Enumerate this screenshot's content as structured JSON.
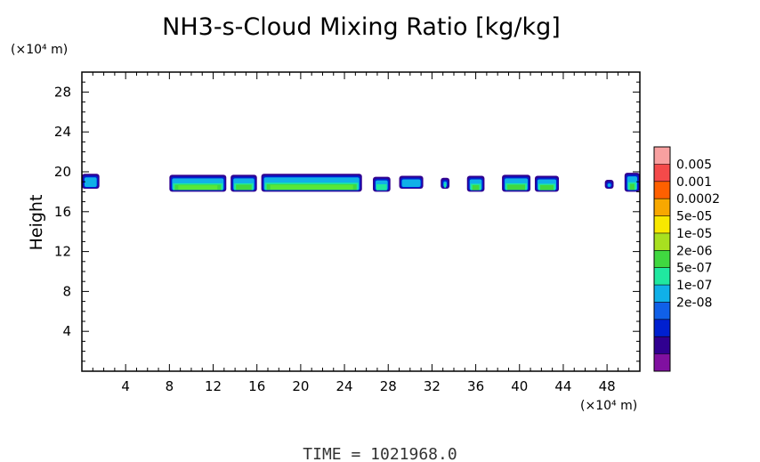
{
  "chart_data": {
    "type": "heatmap",
    "title": "NH3-s-Cloud Mixing Ratio [kg/kg]",
    "ylabel": "Height",
    "x_unit": "(×10⁴ m)",
    "y_unit": "(×10⁴ m)",
    "footer": "TIME = 1021968.0",
    "xlim": [
      0,
      51
    ],
    "ylim": [
      0,
      30
    ],
    "x_ticks": [
      {
        "v": 4,
        "label": "4"
      },
      {
        "v": 8,
        "label": "8"
      },
      {
        "v": 12,
        "label": "12"
      },
      {
        "v": 16,
        "label": "16"
      },
      {
        "v": 20,
        "label": "20"
      },
      {
        "v": 24,
        "label": "24"
      },
      {
        "v": 28,
        "label": "28"
      },
      {
        "v": 32,
        "label": "32"
      },
      {
        "v": 36,
        "label": "36"
      },
      {
        "v": 40,
        "label": "40"
      },
      {
        "v": 44,
        "label": "44"
      },
      {
        "v": 48,
        "label": "48"
      }
    ],
    "y_ticks": [
      {
        "v": 4,
        "label": "4"
      },
      {
        "v": 8,
        "label": "8"
      },
      {
        "v": 12,
        "label": "12"
      },
      {
        "v": 16,
        "label": "16"
      },
      {
        "v": 20,
        "label": "20"
      },
      {
        "v": 24,
        "label": "24"
      },
      {
        "v": 28,
        "label": "28"
      }
    ],
    "colorbar": {
      "levels": [
        {
          "label": "0.005",
          "color": "#f8a0a0"
        },
        {
          "label": "0.001",
          "color": "#f44a4a"
        },
        {
          "label": "0.0002",
          "color": "#ff6000"
        },
        {
          "label": "5e-05",
          "color": "#f8a800"
        },
        {
          "label": "1e-05",
          "color": "#f8e800"
        },
        {
          "label": "2e-06",
          "color": "#a8e020"
        },
        {
          "label": "5e-07",
          "color": "#40d840"
        },
        {
          "label": "1e-07",
          "color": "#20e8a0"
        },
        {
          "label": "2e-08",
          "color": "#10b0e8"
        },
        {
          "label": "",
          "color": "#1060e8"
        },
        {
          "label": "",
          "color": "#0020d0"
        },
        {
          "label": "",
          "color": "#300090"
        },
        {
          "label": "",
          "color": "#8010a0"
        }
      ]
    },
    "cloud_cells": [
      {
        "x0": 0.0,
        "x1": 1.6,
        "y0": 18.3,
        "y1": 19.8,
        "core": 0
      },
      {
        "x0": 8.0,
        "x1": 13.2,
        "y0": 18.0,
        "y1": 19.7,
        "core": 3
      },
      {
        "x0": 13.6,
        "x1": 16.0,
        "y0": 18.0,
        "y1": 19.7,
        "core": 2
      },
      {
        "x0": 16.4,
        "x1": 25.6,
        "y0": 18.0,
        "y1": 19.8,
        "core": 3
      },
      {
        "x0": 26.6,
        "x1": 28.2,
        "y0": 18.0,
        "y1": 19.5,
        "core": 1
      },
      {
        "x0": 29.0,
        "x1": 31.2,
        "y0": 18.3,
        "y1": 19.6,
        "core": 0
      },
      {
        "x0": 32.8,
        "x1": 33.6,
        "y0": 18.3,
        "y1": 19.4,
        "core": 1
      },
      {
        "x0": 35.2,
        "x1": 36.8,
        "y0": 18.0,
        "y1": 19.6,
        "core": 2
      },
      {
        "x0": 38.4,
        "x1": 41.0,
        "y0": 18.0,
        "y1": 19.7,
        "core": 2
      },
      {
        "x0": 41.4,
        "x1": 43.6,
        "y0": 18.0,
        "y1": 19.6,
        "core": 2
      },
      {
        "x0": 47.8,
        "x1": 48.6,
        "y0": 18.3,
        "y1": 19.2,
        "core": 0
      },
      {
        "x0": 49.6,
        "x1": 51.0,
        "y0": 18.0,
        "y1": 19.9,
        "core": 2
      }
    ]
  }
}
